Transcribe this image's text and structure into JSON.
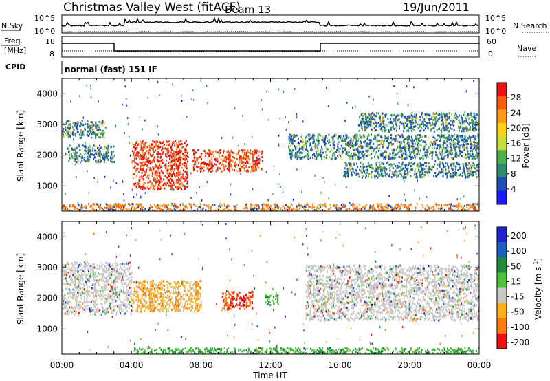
{
  "header": {
    "station": "Christmas Valley West (fitACF)",
    "beam": "Beam 13",
    "date": "19/Jun/2011"
  },
  "panels": {
    "nsky_label": "N.Sky",
    "nsearch_label": "N.Search",
    "nsky_ticks": [
      "10^5",
      "10^0"
    ],
    "nsearch_ticks": [
      "10^5",
      "10^0"
    ],
    "freq_label_1": "Freq.",
    "freq_label_2": "[MHz]",
    "freq_ticks": [
      "18",
      "8"
    ],
    "nave_label": "Nave",
    "nave_ticks": [
      "60",
      "0"
    ],
    "cpid_label": "CPID",
    "cpid_value": "normal (fast) 151 IF"
  },
  "chart_data": [
    {
      "type": "heatmap",
      "name": "power",
      "ylabel": "Slant Range [km]",
      "xlabel": "",
      "yticks": [
        "1000",
        "2000",
        "3000",
        "4000"
      ],
      "ylim": [
        180,
        4500
      ],
      "colorbar_label": "Power [dB]",
      "colorbar_ticks": [
        "4",
        "8",
        "12",
        "16",
        "20",
        "24",
        "28"
      ],
      "colorscale": [
        "#1a1aff",
        "#1e4fb5",
        "#2f8c6e",
        "#4caf50",
        "#c5e03a",
        "#ffd21a",
        "#ff9a1a",
        "#ff5a10",
        "#ee1111"
      ],
      "features": [
        {
          "name": "band-upper",
          "t": [
            0.0,
            2.5
          ],
          "r": [
            2600,
            3150
          ]
        },
        {
          "name": "band-mid",
          "t": [
            0.3,
            3.0
          ],
          "r": [
            1800,
            2350
          ]
        },
        {
          "name": "v-shape-strong",
          "t": [
            4.0,
            7.2
          ],
          "r": [
            900,
            2500
          ]
        },
        {
          "name": "strong-block",
          "t": [
            7.5,
            11.5
          ],
          "r": [
            1500,
            2200
          ]
        },
        {
          "name": "band-evening",
          "t": [
            16.0,
            24.0
          ],
          "r": [
            1300,
            1800
          ]
        },
        {
          "name": "band-evening-upper",
          "t": [
            13.0,
            24.0
          ],
          "r": [
            1900,
            2700
          ]
        },
        {
          "name": "high-range",
          "t": [
            17.0,
            24.0
          ],
          "r": [
            2800,
            3400
          ]
        },
        {
          "name": "near-range",
          "t": [
            0.0,
            24.0
          ],
          "r": [
            180,
            450
          ]
        }
      ]
    },
    {
      "type": "heatmap",
      "name": "velocity",
      "ylabel": "Slant Range [km]",
      "xlabel": "Time UT",
      "yticks": [
        "1000",
        "2000",
        "3000",
        "4000"
      ],
      "xticks": [
        "00:00",
        "04:00",
        "08:00",
        "12:00",
        "16:00",
        "20:00",
        "00:00"
      ],
      "xlim": [
        0,
        24
      ],
      "ylim": [
        180,
        4500
      ],
      "colorbar_label": "Velocity [m s",
      "colorbar_label_sup": "-1",
      "colorbar_label_end": "]",
      "colorbar_ticks": [
        "200",
        "100",
        "50",
        "15",
        "-15",
        "-50",
        "-100",
        "-200"
      ],
      "colorscale": [
        "#2222cc",
        "#1f5fbf",
        "#1f8c3a",
        "#4fc23a",
        "#c8c8c8",
        "#ffae1a",
        "#ff7a10",
        "#ee1111"
      ],
      "features": [
        {
          "name": "gray-ground",
          "t": [
            0.0,
            4.0
          ],
          "r": [
            1500,
            3200
          ]
        },
        {
          "name": "orange-arc",
          "t": [
            4.0,
            8.0
          ],
          "r": [
            1600,
            2600
          ]
        },
        {
          "name": "red-block",
          "t": [
            9.2,
            11.0
          ],
          "r": [
            1650,
            2250
          ]
        },
        {
          "name": "green-blob",
          "t": [
            11.6,
            12.4
          ],
          "r": [
            1800,
            2150
          ]
        },
        {
          "name": "gray-evening",
          "t": [
            14.0,
            24.0
          ],
          "r": [
            1300,
            3100
          ]
        },
        {
          "name": "green-nearrange",
          "t": [
            4.0,
            24.0
          ],
          "r": [
            180,
            420
          ]
        }
      ]
    }
  ]
}
